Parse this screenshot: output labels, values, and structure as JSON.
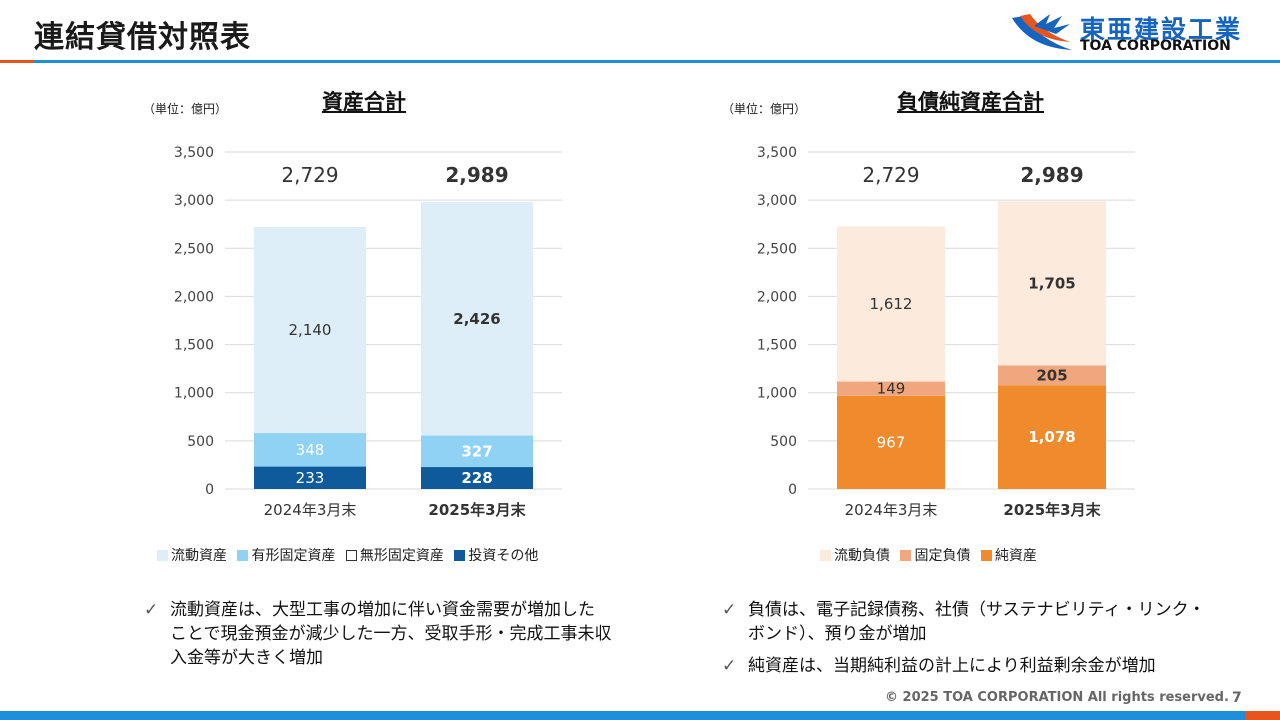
{
  "page": {
    "title": "連結貸借対照表",
    "page_number": "7",
    "copyright": "© 2025 TOA CORPORATION  All rights reserved."
  },
  "logo": {
    "jp": "東亜建設工業",
    "en": "TOA CORPORATION"
  },
  "colors": {
    "brand_blue": "#1e8fd8",
    "accent_orange": "#e8541c",
    "current_assets": "#deeef9",
    "tangible_fixed": "#8fd2f3",
    "intangible_fixed": "#ffffff",
    "investments": "#0e5a9a",
    "current_liab": "#fcebdd",
    "fixed_liab": "#f0a77d",
    "net_assets": "#ef8a2d"
  },
  "assets_chart": {
    "title": "資産合計",
    "unit": "（単位：億円）",
    "legend": [
      "流動資産",
      "有形固定資産",
      "無形固定資産",
      "投資その他"
    ]
  },
  "liab_chart": {
    "title": "負債純資産合計",
    "unit": "（単位：億円）",
    "legend": [
      "流動負債",
      "固定負債",
      "純資産"
    ]
  },
  "chart_data": [
    {
      "type": "bar",
      "stacked": true,
      "title": "資産合計",
      "categories": [
        "2024年3月末",
        "2025年3月末"
      ],
      "ylim": [
        0,
        3500
      ],
      "yticks": [
        "0",
        "500",
        "1,000",
        "1,500",
        "2,000",
        "2,500",
        "3,000",
        "3,500"
      ],
      "grid": true,
      "legend_position": "bottom",
      "totals": [
        2729,
        2989
      ],
      "total_labels": [
        "2,729",
        "2,989"
      ],
      "series": [
        {
          "name": "投資その他",
          "values": [
            233,
            228
          ],
          "labels": [
            "233",
            "228"
          ]
        },
        {
          "name": "無形固定資産",
          "values": [
            0,
            0
          ],
          "labels": [
            "",
            ""
          ]
        },
        {
          "name": "有形固定資産",
          "values": [
            348,
            327
          ],
          "labels": [
            "348",
            "327"
          ]
        },
        {
          "name": "流動資産",
          "values": [
            2140,
            2426
          ],
          "labels": [
            "2,140",
            "2,426"
          ]
        }
      ]
    },
    {
      "type": "bar",
      "stacked": true,
      "title": "負債純資産合計",
      "categories": [
        "2024年3月末",
        "2025年3月末"
      ],
      "ylim": [
        0,
        3500
      ],
      "yticks": [
        "0",
        "500",
        "1,000",
        "1,500",
        "2,000",
        "2,500",
        "3,000",
        "3,500"
      ],
      "grid": true,
      "legend_position": "bottom",
      "totals": [
        2729,
        2989
      ],
      "total_labels": [
        "2,729",
        "2,989"
      ],
      "series": [
        {
          "name": "純資産",
          "values": [
            967,
            1078
          ],
          "labels": [
            "967",
            "1,078"
          ]
        },
        {
          "name": "固定負債",
          "values": [
            149,
            205
          ],
          "labels": [
            "149",
            "205"
          ]
        },
        {
          "name": "流動負債",
          "values": [
            1612,
            1705
          ],
          "labels": [
            "1,612",
            "1,705"
          ]
        }
      ]
    }
  ],
  "notes_left": [
    {
      "lines": [
        "流動資産は、大型工事の増加に伴い資金需要が増加した",
        "ことで現金預金が減少した一方、受取手形・完成工事未収",
        "入金等が大きく増加"
      ]
    }
  ],
  "notes_right": [
    {
      "lines": [
        "負債は、電子記録債務、社債（サステナビリティ・リンク・",
        "ボンド）、預り金が増加"
      ]
    },
    {
      "lines": [
        "純資産は、当期純利益の計上により利益剰余金が増加"
      ]
    }
  ],
  "check_mark": "✓"
}
